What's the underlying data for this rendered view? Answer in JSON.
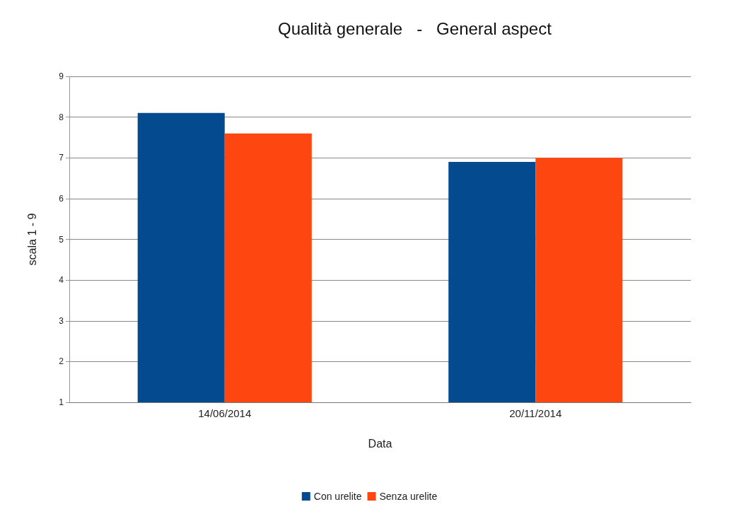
{
  "chart_data": {
    "type": "bar",
    "title": "Qualità generale   -   General aspect",
    "xlabel": "Data",
    "ylabel": "scala 1 - 9",
    "categories": [
      "14/06/2014",
      "20/11/2014"
    ],
    "series": [
      {
        "name": "Con urelite",
        "color": "#044a8e",
        "values": [
          8.1,
          6.9
        ]
      },
      {
        "name": "Senza urelite",
        "color": "#fe4710",
        "values": [
          7.6,
          7.0
        ]
      }
    ],
    "ylim": [
      1,
      9
    ],
    "yticks": [
      1,
      2,
      3,
      4,
      5,
      6,
      7,
      8,
      9
    ],
    "grid": "y",
    "legend": "bottom"
  }
}
